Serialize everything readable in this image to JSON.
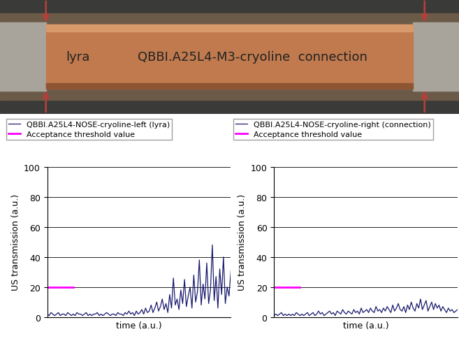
{
  "photo": {
    "texts": [
      "lyra",
      "QBBI.A25L4-M3-cryoline  connection"
    ]
  },
  "chart_data": [
    {
      "type": "line",
      "xlabel": "time (a.u.)",
      "ylabel": "US transmission (a.u.)",
      "xlim": [
        0,
        99
      ],
      "ylim": [
        0,
        100
      ],
      "yticks": [
        0,
        20,
        40,
        60,
        80,
        100
      ],
      "grid": true,
      "tick_labels": "y",
      "legend": "upper left",
      "series": [
        {
          "name": "QBBI.A25L4-NOSE-cryoline-left (lyra)",
          "color": "#1a1a6e",
          "values": [
            2,
            1,
            3,
            2,
            1,
            2,
            3,
            1,
            2,
            2,
            1,
            3,
            2,
            1,
            2,
            1,
            3,
            2,
            2,
            1,
            2,
            3,
            1,
            2,
            1,
            2,
            2,
            3,
            1,
            2,
            1,
            2,
            3,
            2,
            1,
            2,
            2,
            1,
            3,
            2,
            2,
            1,
            3,
            2,
            4,
            2,
            3,
            1,
            4,
            2,
            3,
            5,
            2,
            6,
            3,
            4,
            8,
            3,
            6,
            10,
            4,
            7,
            12,
            5,
            9,
            3,
            15,
            6,
            26,
            8,
            12,
            5,
            18,
            9,
            25,
            7,
            14,
            20,
            6,
            28,
            10,
            17,
            38,
            8,
            22,
            12,
            36,
            9,
            18,
            48,
            11,
            27,
            6,
            32,
            15,
            40,
            9,
            20,
            14,
            31
          ]
        },
        {
          "name": "Acceptance threshold value",
          "color": "#ff00ff",
          "values": [
            20,
            20,
            20,
            20,
            20,
            20,
            20,
            20,
            20,
            20,
            20,
            20,
            20,
            20,
            20,
            null,
            null,
            null,
            null,
            null,
            null,
            null,
            null,
            null,
            null,
            null,
            null,
            null,
            null,
            null,
            null,
            null,
            null,
            null,
            null,
            null,
            null,
            null,
            null,
            null,
            null,
            null,
            null,
            null,
            null,
            null,
            null,
            null,
            null,
            null,
            null,
            null,
            null,
            null,
            null,
            null,
            null,
            null,
            null,
            null,
            null,
            null,
            null,
            null,
            null,
            null,
            null,
            null,
            null,
            null,
            null,
            null,
            null,
            null,
            null,
            null,
            null,
            null,
            null,
            null,
            null,
            null,
            null,
            null,
            null,
            null,
            null,
            null,
            null,
            null,
            null,
            null,
            null,
            null,
            null,
            null,
            null,
            null,
            null,
            null
          ]
        }
      ]
    },
    {
      "type": "line",
      "xlabel": "time (a.u.)",
      "ylabel": "US transmission (a.u.)",
      "xlim": [
        0,
        99
      ],
      "ylim": [
        0,
        100
      ],
      "yticks": [
        0,
        20,
        40,
        60,
        80,
        100
      ],
      "grid": true,
      "tick_labels": "y",
      "legend": "upper left",
      "series": [
        {
          "name": "QBBI.A25L4-NOSE-cryoline-right (connection)",
          "color": "#1a1a6e",
          "values": [
            1,
            2,
            1,
            2,
            3,
            1,
            2,
            1,
            2,
            1,
            2,
            1,
            3,
            2,
            1,
            2,
            1,
            2,
            3,
            1,
            2,
            3,
            1,
            2,
            4,
            2,
            3,
            1,
            2,
            3,
            4,
            2,
            3,
            1,
            4,
            3,
            2,
            5,
            3,
            2,
            4,
            3,
            2,
            5,
            3,
            4,
            2,
            6,
            3,
            4,
            5,
            3,
            6,
            4,
            3,
            7,
            4,
            5,
            3,
            6,
            4,
            7,
            5,
            3,
            8,
            4,
            6,
            9,
            5,
            4,
            7,
            3,
            8,
            5,
            10,
            6,
            4,
            9,
            6,
            12,
            5,
            8,
            11,
            4,
            7,
            10,
            5,
            9,
            6,
            8,
            4,
            7,
            5,
            3,
            6,
            4,
            5,
            3,
            4,
            5
          ]
        },
        {
          "name": "Acceptance threshold value",
          "color": "#ff00ff",
          "values": [
            20,
            20,
            20,
            20,
            20,
            20,
            20,
            20,
            20,
            20,
            20,
            20,
            20,
            20,
            20,
            null,
            null,
            null,
            null,
            null,
            null,
            null,
            null,
            null,
            null,
            null,
            null,
            null,
            null,
            null,
            null,
            null,
            null,
            null,
            null,
            null,
            null,
            null,
            null,
            null,
            null,
            null,
            null,
            null,
            null,
            null,
            null,
            null,
            null,
            null,
            null,
            null,
            null,
            null,
            null,
            null,
            null,
            null,
            null,
            null,
            null,
            null,
            null,
            null,
            null,
            null,
            null,
            null,
            null,
            null,
            null,
            null,
            null,
            null,
            null,
            null,
            null,
            null,
            null,
            null,
            null,
            null,
            null,
            null,
            null,
            null,
            null,
            null,
            null,
            null,
            null,
            null,
            null,
            null,
            null,
            null,
            null,
            null,
            null,
            null
          ]
        }
      ]
    }
  ]
}
